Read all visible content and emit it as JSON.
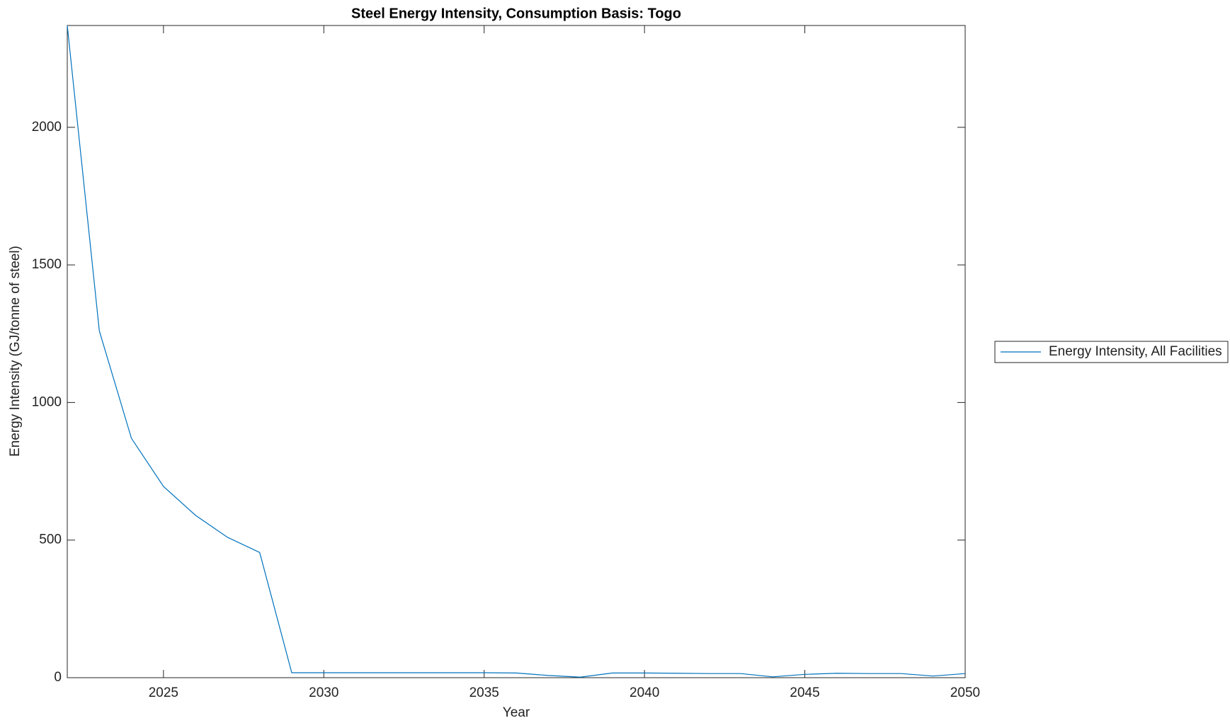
{
  "chart_data": {
    "type": "line",
    "title": "Steel Energy Intensity, Consumption Basis: Togo",
    "x_label": "Year",
    "y_label": "Energy Intensity (GJ/tonne of steel)",
    "x": [
      2022,
      2023,
      2024,
      2025,
      2026,
      2027,
      2028,
      2029,
      2030,
      2031,
      2032,
      2033,
      2034,
      2035,
      2036,
      2037,
      2038,
      2039,
      2040,
      2041,
      2042,
      2043,
      2044,
      2045,
      2046,
      2047,
      2048,
      2049,
      2050
    ],
    "series": [
      {
        "name": "Energy Intensity, All Facilities",
        "color": "#0072bd",
        "values": [
          2370,
          1260,
          870,
          695,
          590,
          510,
          455,
          18,
          18,
          18,
          18,
          18,
          18,
          18,
          17,
          8,
          2,
          17,
          17,
          16,
          15,
          15,
          3,
          12,
          16,
          15,
          15,
          6,
          15
        ]
      }
    ],
    "xlim": [
      2022,
      2050
    ],
    "xticks": [
      2025,
      2030,
      2035,
      2040,
      2045,
      2050
    ],
    "ylim": [
      0,
      2370
    ],
    "yticks": [
      0,
      500,
      1000,
      1500,
      2000
    ],
    "grid": false,
    "legend": "east-outside"
  }
}
